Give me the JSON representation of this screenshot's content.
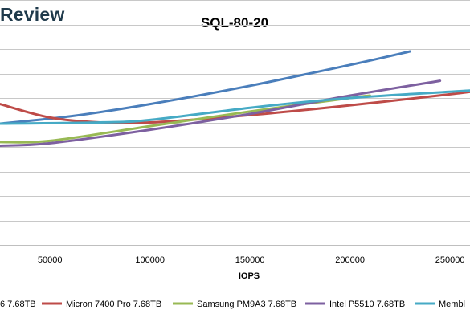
{
  "brand": {
    "logo_text": "Review"
  },
  "chart_data": {
    "type": "line",
    "title": "SQL-80-20",
    "xlabel": "IOPS",
    "ylabel": "",
    "xlim": [
      25000,
      260000
    ],
    "x_ticks": [
      50000,
      100000,
      150000,
      200000,
      250000
    ],
    "x_tick_labels": [
      "50000",
      "100000",
      "150000",
      "200000",
      "250000"
    ],
    "ylim": [
      0,
      10
    ],
    "y_gridlines": [
      1,
      2,
      3,
      4,
      5,
      6,
      7,
      8,
      9,
      10
    ],
    "grid": "horizontal",
    "legend_position": "bottom",
    "series": [
      {
        "name": "…6 7.68TB",
        "legend_label": "6 7.68TB",
        "color": "#4a7ebb",
        "x": [
          25000,
          60000,
          100000,
          150000,
          200000,
          230000
        ],
        "y": [
          4.95,
          5.25,
          5.75,
          6.5,
          7.35,
          7.9
        ]
      },
      {
        "name": "Micron 7400 Pro 7.68TB",
        "legend_label": "Micron 7400 Pro 7.68TB",
        "color": "#be4b48",
        "x": [
          25000,
          50000,
          75000,
          100000,
          150000,
          200000,
          250000,
          260000
        ],
        "y": [
          5.75,
          5.2,
          5.0,
          5.0,
          5.3,
          5.7,
          6.15,
          6.25
        ]
      },
      {
        "name": "Samsung PM9A3 7.68TB",
        "legend_label": "Samsung PM9A3 7.68TB",
        "color": "#98b954",
        "x": [
          25000,
          50000,
          100000,
          150000,
          200000,
          210000
        ],
        "y": [
          4.2,
          4.25,
          4.85,
          5.45,
          6.0,
          6.1
        ]
      },
      {
        "name": "Intel P5510 7.68TB",
        "legend_label": "Intel P5510 7.68TB",
        "color": "#7d60a0",
        "x": [
          25000,
          50000,
          100000,
          150000,
          200000,
          245000
        ],
        "y": [
          4.05,
          4.15,
          4.7,
          5.35,
          6.1,
          6.7
        ]
      },
      {
        "name": "Membl…",
        "legend_label": "Membl",
        "color": "#46aac5",
        "x": [
          25000,
          75000,
          100000,
          150000,
          200000,
          260000
        ],
        "y": [
          4.95,
          5.0,
          5.1,
          5.6,
          6.0,
          6.3
        ]
      }
    ]
  }
}
